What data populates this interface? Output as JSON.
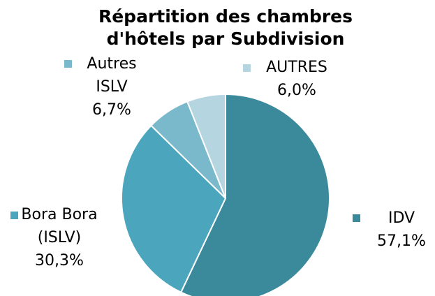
{
  "chart_data": {
    "type": "pie",
    "title": "Répartition des chambres d'hôtels par Subdivision",
    "categories": [
      "IDV",
      "Bora Bora (ISLV)",
      "Autres ISLV",
      "AUTRES"
    ],
    "values": [
      57.1,
      30.3,
      6.7,
      6.0
    ],
    "value_labels": [
      "57,1%",
      "30,3%",
      "6,7%",
      "6,0%"
    ],
    "colors": [
      "#3a8a9c",
      "#4aa5bd",
      "#7ab8cc",
      "#b5d6e0"
    ]
  }
}
